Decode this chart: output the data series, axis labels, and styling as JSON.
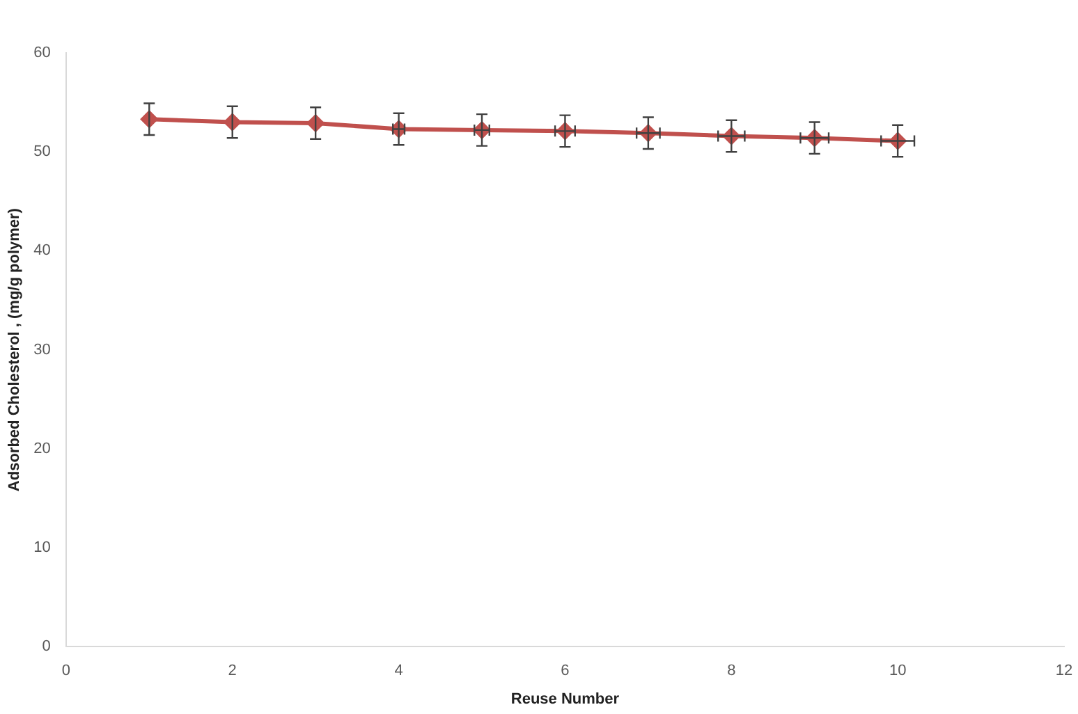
{
  "chart_data": {
    "type": "line",
    "xlabel": "Reuse Number",
    "ylabel": "Adsorbed Cholesterol , (mg/g polymer)",
    "x": [
      1,
      2,
      3,
      4,
      5,
      6,
      7,
      8,
      9,
      10
    ],
    "series": [
      {
        "color": "#c0504d",
        "values": [
          53.3,
          53.0,
          52.9,
          52.3,
          52.2,
          52.1,
          51.9,
          51.6,
          51.4,
          51.1
        ],
        "errors": [
          1.6,
          1.6,
          1.6,
          1.6,
          1.6,
          1.6,
          1.6,
          1.6,
          1.6,
          1.6
        ],
        "xerrors": [
          null,
          null,
          null,
          0.07,
          0.09,
          0.12,
          0.14,
          0.16,
          0.17,
          0.2
        ]
      }
    ],
    "xlim": [
      0,
      12
    ],
    "xticks": [
      0,
      2,
      4,
      6,
      8,
      10,
      12
    ],
    "ylim": [
      0,
      60
    ],
    "yticks": [
      0,
      10,
      20,
      30,
      40,
      50,
      60
    ],
    "grid": false,
    "legend": false,
    "marker": "diamond",
    "line_style": "solid"
  }
}
